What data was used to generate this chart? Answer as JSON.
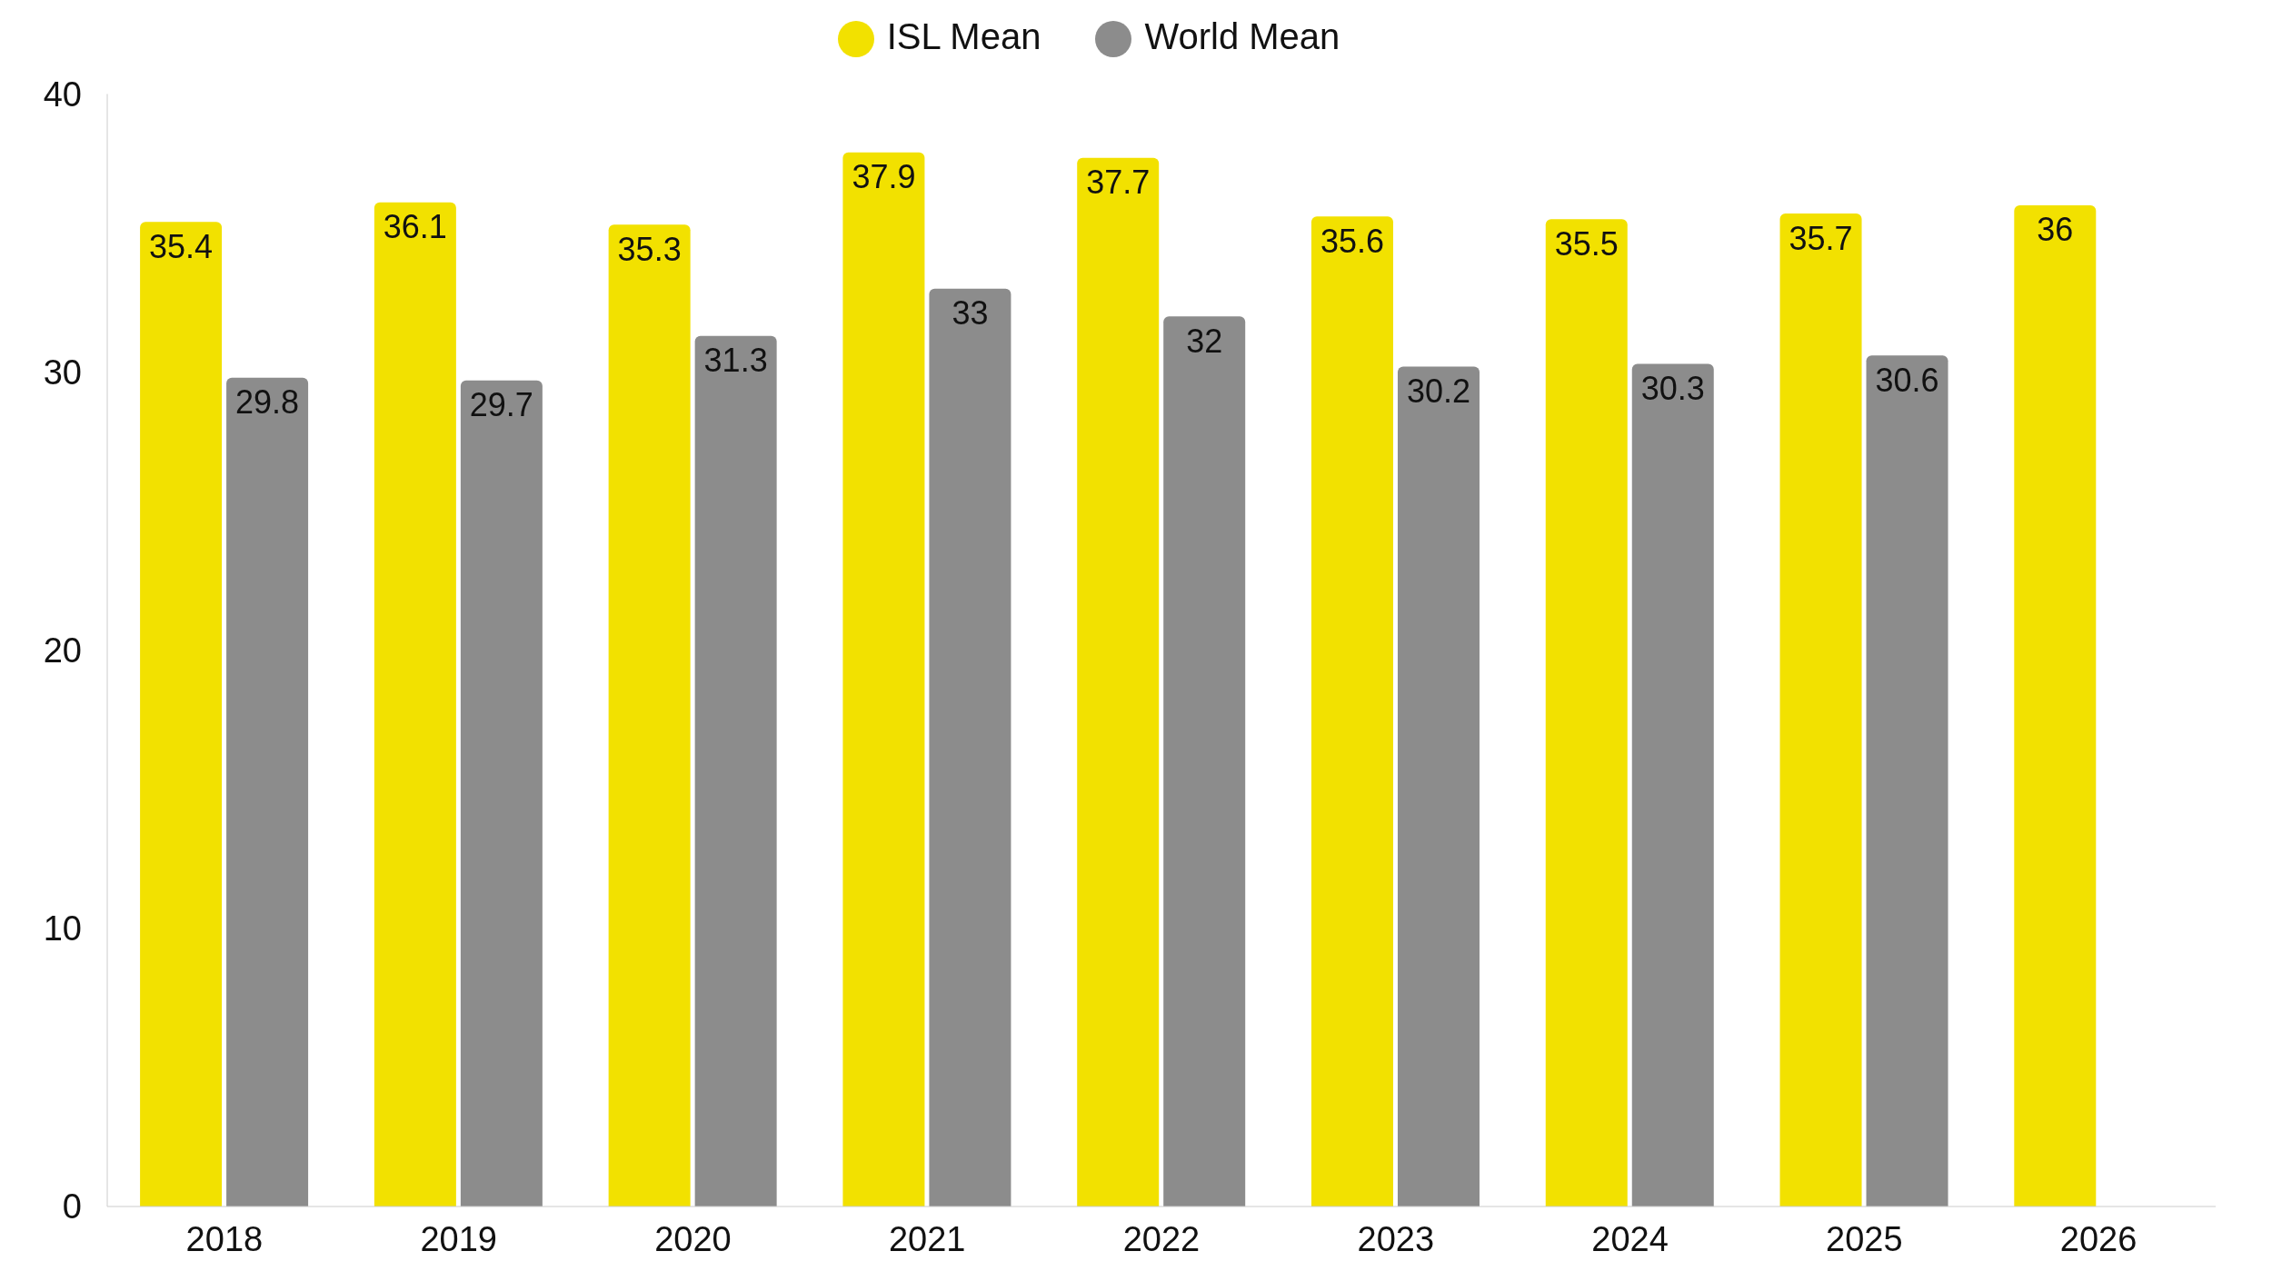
{
  "chart_data": {
    "type": "bar",
    "categories": [
      "2018",
      "2019",
      "2020",
      "2021",
      "2022",
      "2023",
      "2024",
      "2025",
      "2026"
    ],
    "series": [
      {
        "name": "ISL Mean",
        "color": "#f2e100",
        "values": [
          35.4,
          36.1,
          35.3,
          37.9,
          37.7,
          35.6,
          35.5,
          35.7,
          36
        ]
      },
      {
        "name": "World Mean",
        "color": "#8c8c8c",
        "values": [
          29.8,
          29.7,
          31.3,
          33,
          32,
          30.2,
          30.3,
          30.6,
          null
        ]
      }
    ],
    "ylim": [
      0,
      40
    ],
    "yticks": [
      0,
      10,
      20,
      30,
      40
    ],
    "grid": false,
    "legend": "top",
    "data_labels": true
  }
}
